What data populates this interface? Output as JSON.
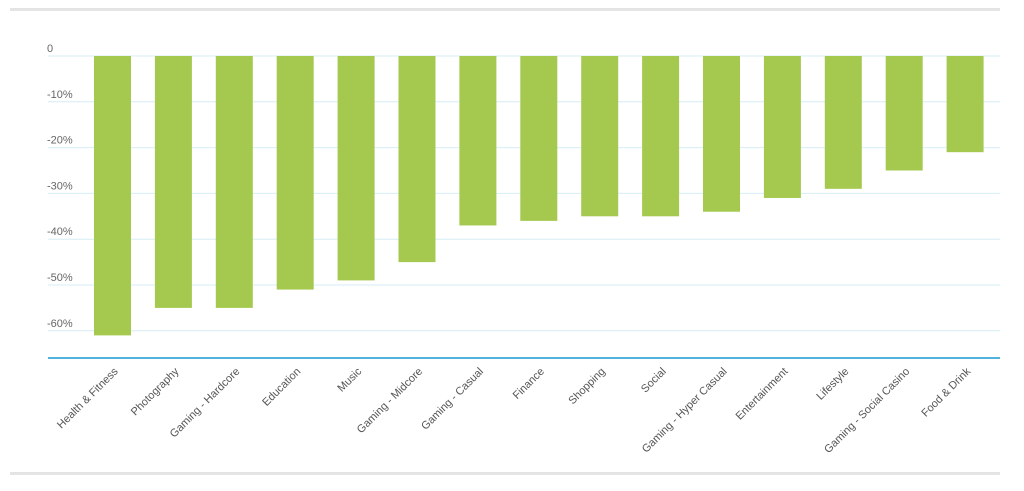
{
  "chart_data": {
    "type": "bar",
    "title": "",
    "xlabel": "",
    "ylabel": "",
    "ylim": [
      -66,
      0
    ],
    "y_ticks": [
      0,
      -10,
      -20,
      -30,
      -40,
      -50,
      -60
    ],
    "y_tick_labels": [
      "0",
      "-10%",
      "-20%",
      "-30%",
      "-40%",
      "-50%",
      "-60%"
    ],
    "grid": true,
    "categories": [
      "Health & Fitness",
      "Photography",
      "Gaming - Hardcore",
      "Education",
      "Music",
      "Gaming - Midcore",
      "Gaming - Casual",
      "Finance",
      "Shopping",
      "Social",
      "Gaming - Hyper Casual",
      "Entertainment",
      "Lifestyle",
      "Gaming - Social Casino",
      "Food & Drink"
    ],
    "values": [
      -61,
      -55,
      -55,
      -51,
      -49,
      -45,
      -37,
      -36,
      -35,
      -35,
      -34,
      -31,
      -29,
      -25,
      -21
    ],
    "colors": {
      "bar": "#a5c94f",
      "grid": "#d6eef6",
      "axis": "#4fb3dc",
      "frame": "#e4e4e4"
    }
  }
}
